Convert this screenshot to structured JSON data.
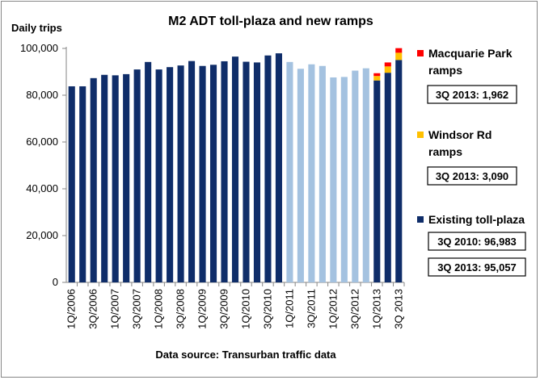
{
  "chart_data": {
    "type": "bar",
    "title": "M2 ADT toll-plaza and new ramps",
    "ylabel": "Daily trips",
    "source": "Data source: Transurban traffic data",
    "ylim": [
      0,
      100000
    ],
    "yticks": [
      "0",
      "20,000",
      "40,000",
      "60,000",
      "80,000",
      "100,000"
    ],
    "ytick_values": [
      0,
      20000,
      40000,
      60000,
      80000,
      100000
    ],
    "grid": false,
    "categories": [
      "1Q/2006",
      "2Q/2006",
      "3Q/2006",
      "4Q/2006",
      "1Q/2007",
      "2Q/2007",
      "3Q/2007",
      "4Q/2007",
      "1Q/2008",
      "2Q/2008",
      "3Q/2008",
      "4Q/2008",
      "1Q/2009",
      "2Q/2009",
      "3Q/2009",
      "4Q/2009",
      "1Q/2010",
      "2Q/2010",
      "3Q/2010",
      "4Q/2010",
      "1Q/2011",
      "2Q/2011",
      "3Q/2011",
      "4Q/2011",
      "1Q/2012",
      "2Q/2012",
      "3Q/2012",
      "4Q/2012",
      "1Q/2013",
      "2Q/2013",
      "3Q/2013"
    ],
    "xtick_labels": [
      "1Q/2006",
      "3Q/2006",
      "1Q/2007",
      "3Q/2007",
      "1Q/2008",
      "3Q/2008",
      "1Q/2009",
      "3Q/2009",
      "1Q/2010",
      "3Q/2010",
      "1Q/2011",
      "3Q/2011",
      "1Q/2012",
      "3Q/2012",
      "1Q/2013",
      "3Q 2013"
    ],
    "series": [
      {
        "name": "Existing toll-plaza",
        "color": "#0F2D69",
        "color_2011_2012": "#A4C2E0",
        "values": [
          83800,
          83800,
          87300,
          88700,
          88500,
          89000,
          91000,
          94200,
          91000,
          92000,
          92700,
          94600,
          92500,
          93000,
          94500,
          96500,
          94300,
          94000,
          96983,
          97900,
          94200,
          91300,
          93200,
          92500,
          87600,
          87800,
          90500,
          91500,
          86300,
          89600,
          95057
        ]
      },
      {
        "name": "Windsor Rd ramps",
        "color": "#FFC000",
        "values": [
          0,
          0,
          0,
          0,
          0,
          0,
          0,
          0,
          0,
          0,
          0,
          0,
          0,
          0,
          0,
          0,
          0,
          0,
          0,
          0,
          0,
          0,
          0,
          0,
          0,
          0,
          0,
          0,
          1900,
          2700,
          3090
        ]
      },
      {
        "name": "Macquarie Park ramps",
        "color": "#FF0000",
        "values": [
          0,
          0,
          0,
          0,
          0,
          0,
          0,
          0,
          0,
          0,
          0,
          0,
          0,
          0,
          0,
          0,
          0,
          0,
          0,
          0,
          0,
          0,
          0,
          0,
          0,
          0,
          0,
          0,
          1200,
          1700,
          1962
        ]
      }
    ],
    "legend": [
      {
        "label_lines": [
          "Macquarie Park",
          "ramps"
        ],
        "color": "#FF0000",
        "callout": "3Q 2013: 1,962"
      },
      {
        "label_lines": [
          "Windsor Rd",
          "ramps"
        ],
        "color": "#FFC000",
        "callout": "3Q 2013: 3,090"
      },
      {
        "label_lines": [
          "Existing toll-plaza"
        ],
        "color": "#0F2D69",
        "callouts": [
          "3Q 2010: 96,983",
          "3Q 2013: 95,057"
        ]
      }
    ],
    "legend_position": "right"
  }
}
